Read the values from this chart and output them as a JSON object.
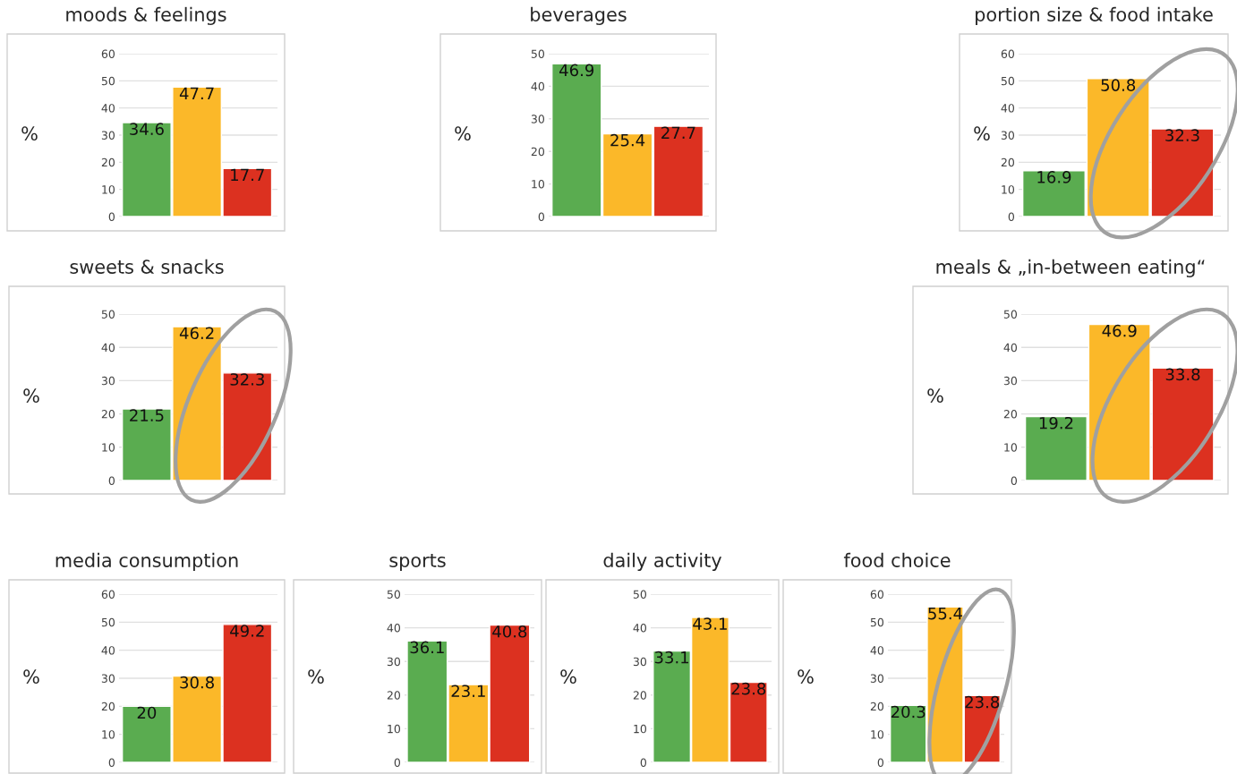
{
  "chart_data": [
    {
      "type": "bar",
      "title": "moods & feelings",
      "ylabel": "%",
      "categories": [
        null,
        null,
        null
      ],
      "colors": [
        "#5aac50",
        "#fbb829",
        "#dc3120"
      ],
      "values": [
        34.6,
        47.7,
        17.7
      ],
      "ylim": [
        0,
        60
      ],
      "yticks": [
        0,
        10,
        20,
        30,
        40,
        50,
        60
      ],
      "grid": "y",
      "data_labels": true
    },
    {
      "type": "bar",
      "title": "beverages",
      "ylabel": "%",
      "categories": [
        null,
        null,
        null
      ],
      "colors": [
        "#5aac50",
        "#fbb829",
        "#dc3120"
      ],
      "values": [
        46.9,
        25.4,
        27.7
      ],
      "ylim": [
        0,
        50
      ],
      "yticks": [
        0,
        10,
        20,
        30,
        40,
        50
      ],
      "grid": "y",
      "data_labels": true
    },
    {
      "type": "bar",
      "title": "portion size & food intake",
      "ylabel": "%",
      "categories": [
        null,
        null,
        null
      ],
      "colors": [
        "#5aac50",
        "#fbb829",
        "#dc3120"
      ],
      "values": [
        16.9,
        50.8,
        32.3
      ],
      "ylim": [
        0,
        60
      ],
      "yticks": [
        0,
        10,
        20,
        30,
        40,
        50,
        60
      ],
      "grid": "y",
      "data_labels": true
    },
    {
      "type": "bar",
      "title": "sweets & snacks",
      "ylabel": "%",
      "categories": [
        null,
        null,
        null
      ],
      "colors": [
        "#5aac50",
        "#fbb829",
        "#dc3120"
      ],
      "values": [
        21.5,
        46.2,
        32.3
      ],
      "ylim": [
        0,
        50
      ],
      "yticks": [
        0,
        10,
        20,
        30,
        40,
        50
      ],
      "grid": "y",
      "data_labels": true
    },
    {
      "type": "bar",
      "title": "meals & „in-between eating“",
      "ylabel": "%",
      "categories": [
        null,
        null,
        null
      ],
      "colors": [
        "#5aac50",
        "#fbb829",
        "#dc3120"
      ],
      "values": [
        19.2,
        46.9,
        33.8
      ],
      "ylim": [
        0,
        50
      ],
      "yticks": [
        0,
        10,
        20,
        30,
        40,
        50
      ],
      "grid": "y",
      "data_labels": true
    },
    {
      "type": "bar",
      "title": "media consumption",
      "ylabel": "%",
      "categories": [
        null,
        null,
        null
      ],
      "colors": [
        "#5aac50",
        "#fbb829",
        "#dc3120"
      ],
      "values": [
        20,
        30.8,
        49.2
      ],
      "ylim": [
        0,
        60
      ],
      "yticks": [
        0,
        10,
        20,
        30,
        40,
        50,
        60
      ],
      "grid": "y",
      "data_labels": true
    },
    {
      "type": "bar",
      "title": "sports",
      "ylabel": "%",
      "categories": [
        null,
        null,
        null
      ],
      "colors": [
        "#5aac50",
        "#fbb829",
        "#dc3120"
      ],
      "values": [
        36.1,
        23.1,
        40.8
      ],
      "ylim": [
        0,
        50
      ],
      "yticks": [
        0,
        10,
        20,
        30,
        40,
        50
      ],
      "grid": "y",
      "data_labels": true
    },
    {
      "type": "bar",
      "title": "daily activity",
      "ylabel": "%",
      "categories": [
        null,
        null,
        null
      ],
      "colors": [
        "#5aac50",
        "#fbb829",
        "#dc3120"
      ],
      "values": [
        33.1,
        43.1,
        23.8
      ],
      "ylim": [
        0,
        50
      ],
      "yticks": [
        0,
        10,
        20,
        30,
        40,
        50
      ],
      "grid": "y",
      "data_labels": true
    },
    {
      "type": "bar",
      "title": "food choice",
      "ylabel": "%",
      "categories": [
        null,
        null,
        null
      ],
      "colors": [
        "#5aac50",
        "#fbb829",
        "#dc3120"
      ],
      "values": [
        20.3,
        55.4,
        23.8
      ],
      "ylim": [
        0,
        60
      ],
      "yticks": [
        0,
        10,
        20,
        30,
        40,
        50,
        60
      ],
      "grid": "y",
      "data_labels": true
    }
  ]
}
